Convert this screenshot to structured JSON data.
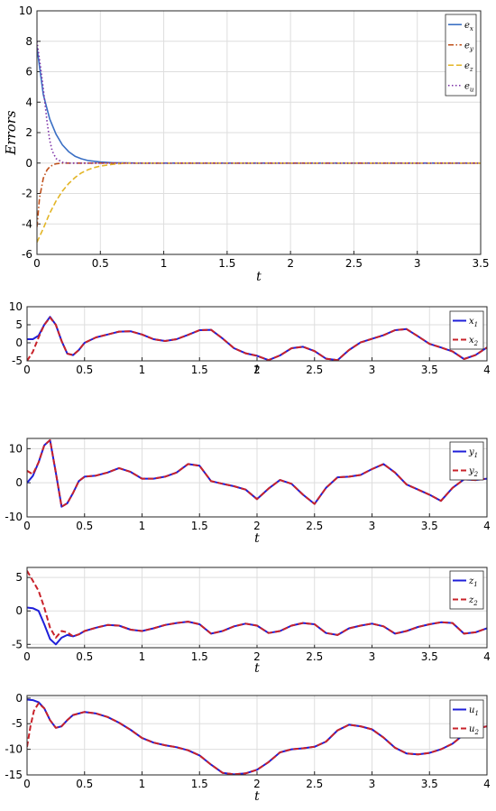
{
  "chart_data": [
    {
      "type": "line",
      "title": "",
      "xlabel": "t",
      "ylabel": "Errors",
      "xlim": [
        0,
        3.5
      ],
      "ylim": [
        -6,
        10
      ],
      "xticks": [
        "0",
        "0.5",
        "1",
        "1.5",
        "2",
        "2.5",
        "3",
        "3.5"
      ],
      "yticks": [
        "-6",
        "-4",
        "-2",
        "0",
        "2",
        "4",
        "6",
        "8",
        "10"
      ],
      "grid": true,
      "legend_position": "top-right",
      "series": [
        {
          "name": "e_x",
          "legend_base": "e",
          "legend_sub": "x",
          "color": "#3a6fc4",
          "dash": "solid",
          "x": [
            0,
            0.05,
            0.1,
            0.15,
            0.2,
            0.25,
            0.3,
            0.35,
            0.4,
            0.5,
            0.6,
            0.7,
            0.8,
            1,
            3.5
          ],
          "y": [
            7.6,
            4.5,
            2.9,
            1.9,
            1.2,
            0.75,
            0.45,
            0.28,
            0.17,
            0.07,
            0.02,
            0.01,
            0,
            0,
            0
          ]
        },
        {
          "name": "e_y",
          "legend_base": "e",
          "legend_sub": "y",
          "color": "#c0501a",
          "dash": "dashdot",
          "x": [
            0,
            0.02,
            0.05,
            0.08,
            0.1,
            0.13,
            0.15,
            0.2,
            0.25,
            0.3,
            0.4,
            3.5
          ],
          "y": [
            -4.2,
            -2.3,
            -1.0,
            -0.45,
            -0.25,
            -0.1,
            -0.05,
            0,
            0,
            0,
            0,
            0
          ]
        },
        {
          "name": "e_z",
          "legend_base": "e",
          "legend_sub": "z",
          "color": "#e3b526",
          "dash": "dashed",
          "x": [
            0,
            0.05,
            0.1,
            0.15,
            0.2,
            0.25,
            0.3,
            0.35,
            0.4,
            0.45,
            0.5,
            0.6,
            0.7,
            3.5
          ],
          "y": [
            -5.2,
            -4.3,
            -3.3,
            -2.5,
            -1.85,
            -1.35,
            -0.95,
            -0.65,
            -0.45,
            -0.3,
            -0.2,
            -0.08,
            0,
            0
          ]
        },
        {
          "name": "e_u",
          "legend_base": "e",
          "legend_sub": "u",
          "color": "#7b2fa6",
          "dash": "dotted",
          "x": [
            0,
            0.03,
            0.05,
            0.08,
            0.1,
            0.12,
            0.15,
            0.2,
            0.25,
            0.3,
            3.5
          ],
          "y": [
            8.0,
            6.2,
            4.9,
            2.7,
            1.5,
            0.8,
            0.3,
            0.05,
            0,
            0,
            0
          ]
        }
      ]
    },
    {
      "type": "line",
      "title": "",
      "xlabel": "t",
      "ylabel": "",
      "xlim": [
        0,
        4
      ],
      "ylim": [
        -5,
        10
      ],
      "xticks": [
        "0",
        "0.5",
        "1",
        "1.5",
        "2",
        "2.5",
        "3",
        "3.5",
        "4"
      ],
      "yticks": [
        "-5",
        "0",
        "5",
        "10"
      ],
      "grid": true,
      "legend_position": "top-right",
      "series": [
        {
          "name": "x_1",
          "legend_base": "x",
          "legend_sub": "1",
          "color": "#1f1fd9",
          "dash": "solid",
          "x": [
            0,
            0.05,
            0.1,
            0.15,
            0.2,
            0.25,
            0.3,
            0.35,
            0.4,
            0.45,
            0.5,
            0.6,
            0.7,
            0.8,
            0.9,
            1.0,
            1.1,
            1.2,
            1.3,
            1.4,
            1.5,
            1.6,
            1.7,
            1.8,
            1.9,
            2.0,
            2.1,
            2.2,
            2.3,
            2.4,
            2.5,
            2.6,
            2.7,
            2.8,
            2.9,
            3.0,
            3.1,
            3.2,
            3.3,
            3.4,
            3.5,
            3.6,
            3.7,
            3.8,
            3.9,
            4.0
          ],
          "y": [
            1,
            1,
            2,
            5,
            7.2,
            5,
            0.5,
            -3,
            -3.4,
            -2,
            0,
            1.5,
            2.3,
            3.1,
            3.2,
            2.3,
            1,
            0.5,
            1,
            2.2,
            3.5,
            3.6,
            1.2,
            -1.5,
            -2.9,
            -3.6,
            -4.8,
            -3.5,
            -1.5,
            -1.1,
            -2.3,
            -4.4,
            -4.8,
            -2,
            0.1,
            1.1,
            2.1,
            3.5,
            3.8,
            1.8,
            -0.3,
            -1.3,
            -2.4,
            -4.5,
            -3.4,
            -1.3
          ]
        },
        {
          "name": "x_2",
          "legend_base": "x",
          "legend_sub": "2",
          "color": "#c8222a",
          "dash": "dashed",
          "x": [
            0,
            0.05,
            0.1,
            0.15,
            0.2,
            0.25,
            0.3,
            0.35,
            0.4,
            0.45,
            0.5,
            0.6,
            0.7,
            0.8,
            0.9,
            1.0,
            1.1,
            1.2,
            1.3,
            1.4,
            1.5,
            1.6,
            1.7,
            1.8,
            1.9,
            2.0,
            2.1,
            2.2,
            2.3,
            2.4,
            2.5,
            2.6,
            2.7,
            2.8,
            2.9,
            3.0,
            3.1,
            3.2,
            3.3,
            3.4,
            3.5,
            3.6,
            3.7,
            3.8,
            3.9,
            4.0
          ],
          "y": [
            -5,
            -2.5,
            1.5,
            5,
            7,
            5,
            0.5,
            -3,
            -3.4,
            -2,
            0,
            1.5,
            2.3,
            3.1,
            3.2,
            2.3,
            1,
            0.5,
            1,
            2.2,
            3.5,
            3.6,
            1.2,
            -1.5,
            -2.9,
            -3.6,
            -4.8,
            -3.5,
            -1.5,
            -1.1,
            -2.3,
            -4.4,
            -4.8,
            -2,
            0.1,
            1.1,
            2.1,
            3.5,
            3.8,
            1.8,
            -0.3,
            -1.3,
            -2.4,
            -4.5,
            -3.4,
            -1.3
          ]
        }
      ]
    },
    {
      "type": "line",
      "title": "",
      "xlabel": "t",
      "ylabel": "",
      "xlim": [
        0,
        4
      ],
      "ylim": [
        -10,
        13
      ],
      "xticks": [
        "0",
        "0.5",
        "1",
        "1.5",
        "2",
        "2.5",
        "3",
        "3.5",
        "4"
      ],
      "yticks": [
        "-10",
        "0",
        "10"
      ],
      "grid": true,
      "legend_position": "top-right",
      "series": [
        {
          "name": "y_1",
          "legend_base": "y",
          "legend_sub": "1",
          "color": "#1f1fd9",
          "dash": "solid",
          "x": [
            0,
            0.05,
            0.1,
            0.15,
            0.2,
            0.25,
            0.3,
            0.35,
            0.4,
            0.45,
            0.5,
            0.6,
            0.7,
            0.8,
            0.9,
            1.0,
            1.1,
            1.2,
            1.3,
            1.4,
            1.5,
            1.6,
            1.7,
            1.8,
            1.9,
            2.0,
            2.1,
            2.2,
            2.3,
            2.4,
            2.5,
            2.6,
            2.7,
            2.8,
            2.9,
            3.0,
            3.1,
            3.2,
            3.3,
            3.4,
            3.5,
            3.6,
            3.7,
            3.8,
            3.9,
            4.0
          ],
          "y": [
            0,
            2,
            6,
            11,
            12.5,
            3,
            -7,
            -6,
            -3,
            0.5,
            1.8,
            2.1,
            3,
            4.3,
            3.2,
            1.2,
            1.2,
            1.8,
            3,
            5.5,
            5,
            0.5,
            -0.3,
            -1,
            -2,
            -4.8,
            -1.7,
            0.8,
            -0.3,
            -3.5,
            -6.2,
            -1.5,
            1.6,
            1.8,
            2.3,
            4,
            5.5,
            3,
            -0.5,
            -2,
            -3.5,
            -5.3,
            -1.5,
            1,
            0.8,
            1.2
          ]
        },
        {
          "name": "y_2",
          "legend_base": "y",
          "legend_sub": "2",
          "color": "#c8222a",
          "dash": "dashed",
          "x": [
            0,
            0.05,
            0.1,
            0.15,
            0.2,
            0.25,
            0.3,
            0.35,
            0.4,
            0.45,
            0.5,
            0.6,
            0.7,
            0.8,
            0.9,
            1.0,
            1.1,
            1.2,
            1.3,
            1.4,
            1.5,
            1.6,
            1.7,
            1.8,
            1.9,
            2.0,
            2.1,
            2.2,
            2.3,
            2.4,
            2.5,
            2.6,
            2.7,
            2.8,
            2.9,
            3.0,
            3.1,
            3.2,
            3.3,
            3.4,
            3.5,
            3.6,
            3.7,
            3.8,
            3.9,
            4.0
          ],
          "y": [
            3.5,
            2.5,
            6,
            11,
            12.5,
            3,
            -7,
            -6,
            -3,
            0.5,
            1.8,
            2.1,
            3,
            4.3,
            3.2,
            1.2,
            1.2,
            1.8,
            3,
            5.5,
            5,
            0.5,
            -0.3,
            -1,
            -2,
            -4.8,
            -1.7,
            0.8,
            -0.3,
            -3.5,
            -6.2,
            -1.5,
            1.6,
            1.8,
            2.3,
            4,
            5.5,
            3,
            -0.5,
            -2,
            -3.5,
            -5.3,
            -1.5,
            1,
            0.8,
            1.2
          ]
        }
      ]
    },
    {
      "type": "line",
      "title": "",
      "xlabel": "t",
      "ylabel": "",
      "xlim": [
        0,
        4
      ],
      "ylim": [
        -5.5,
        6.5
      ],
      "xticks": [
        "0",
        "0.5",
        "1",
        "1.5",
        "2",
        "2.5",
        "3",
        "3.5",
        "4"
      ],
      "yticks": [
        "-5",
        "0",
        "5"
      ],
      "grid": true,
      "legend_position": "top-right",
      "series": [
        {
          "name": "z_1",
          "legend_base": "z",
          "legend_sub": "1",
          "color": "#1f1fd9",
          "dash": "solid",
          "x": [
            0,
            0.05,
            0.1,
            0.15,
            0.2,
            0.25,
            0.3,
            0.35,
            0.4,
            0.45,
            0.5,
            0.6,
            0.7,
            0.8,
            0.9,
            1.0,
            1.1,
            1.2,
            1.3,
            1.4,
            1.5,
            1.6,
            1.7,
            1.8,
            1.9,
            2.0,
            2.1,
            2.2,
            2.3,
            2.4,
            2.5,
            2.6,
            2.7,
            2.8,
            2.9,
            3.0,
            3.1,
            3.2,
            3.3,
            3.4,
            3.5,
            3.6,
            3.7,
            3.8,
            3.9,
            4.0
          ],
          "y": [
            0.5,
            0.4,
            0,
            -2,
            -4.2,
            -5,
            -4,
            -3.6,
            -3.8,
            -3.5,
            -3,
            -2.5,
            -2.1,
            -2.2,
            -2.8,
            -3,
            -2.6,
            -2.1,
            -1.8,
            -1.6,
            -2,
            -3.4,
            -3,
            -2.3,
            -1.9,
            -2.2,
            -3.3,
            -3,
            -2.2,
            -1.8,
            -2,
            -3.3,
            -3.6,
            -2.6,
            -2.2,
            -1.9,
            -2.3,
            -3.4,
            -3,
            -2.4,
            -2,
            -1.7,
            -1.8,
            -3.4,
            -3.2,
            -2.6
          ]
        },
        {
          "name": "z_2",
          "legend_base": "z",
          "legend_sub": "2",
          "color": "#c8222a",
          "dash": "dashed",
          "x": [
            0,
            0.05,
            0.1,
            0.15,
            0.2,
            0.25,
            0.3,
            0.35,
            0.4,
            0.45,
            0.5,
            0.6,
            0.7,
            0.8,
            0.9,
            1.0,
            1.1,
            1.2,
            1.3,
            1.4,
            1.5,
            1.6,
            1.7,
            1.8,
            1.9,
            2.0,
            2.1,
            2.2,
            2.3,
            2.4,
            2.5,
            2.6,
            2.7,
            2.8,
            2.9,
            3.0,
            3.1,
            3.2,
            3.3,
            3.4,
            3.5,
            3.6,
            3.7,
            3.8,
            3.9,
            4.0
          ],
          "y": [
            6,
            4.5,
            3,
            0.5,
            -2.5,
            -4,
            -3,
            -3.2,
            -3.8,
            -3.5,
            -3,
            -2.5,
            -2.1,
            -2.2,
            -2.8,
            -3,
            -2.6,
            -2.1,
            -1.8,
            -1.6,
            -2,
            -3.4,
            -3,
            -2.3,
            -1.9,
            -2.2,
            -3.3,
            -3,
            -2.2,
            -1.8,
            -2,
            -3.3,
            -3.6,
            -2.6,
            -2.2,
            -1.9,
            -2.3,
            -3.4,
            -3,
            -2.4,
            -2,
            -1.7,
            -1.8,
            -3.4,
            -3.2,
            -2.6
          ]
        }
      ]
    },
    {
      "type": "line",
      "title": "",
      "xlabel": "t",
      "ylabel": "",
      "xlim": [
        0,
        4
      ],
      "ylim": [
        -15,
        0.5
      ],
      "xticks": [
        "0",
        "0.5",
        "1",
        "1.5",
        "2",
        "2.5",
        "3",
        "3.5",
        "4"
      ],
      "yticks": [
        "-15",
        "-10",
        "-5",
        "0"
      ],
      "grid": true,
      "legend_position": "top-right",
      "series": [
        {
          "name": "u_1",
          "legend_base": "u",
          "legend_sub": "1",
          "color": "#1f1fd9",
          "dash": "solid",
          "x": [
            0,
            0.05,
            0.1,
            0.15,
            0.2,
            0.25,
            0.3,
            0.35,
            0.4,
            0.5,
            0.6,
            0.7,
            0.8,
            0.9,
            1.0,
            1.1,
            1.2,
            1.3,
            1.4,
            1.5,
            1.6,
            1.7,
            1.8,
            1.9,
            2.0,
            2.1,
            2.2,
            2.3,
            2.4,
            2.5,
            2.6,
            2.7,
            2.8,
            2.9,
            3.0,
            3.1,
            3.2,
            3.3,
            3.4,
            3.5,
            3.6,
            3.7,
            3.8,
            3.9,
            4.0
          ],
          "y": [
            -0.3,
            -0.4,
            -0.8,
            -2,
            -4.3,
            -5.8,
            -5.5,
            -4.3,
            -3.3,
            -2.7,
            -3,
            -3.7,
            -4.8,
            -6.2,
            -7.8,
            -8.7,
            -9.2,
            -9.6,
            -10.2,
            -11.2,
            -13,
            -14.6,
            -14.9,
            -14.7,
            -14,
            -12.5,
            -10.6,
            -10,
            -9.8,
            -9.5,
            -8.5,
            -6.3,
            -5.2,
            -5.5,
            -6.1,
            -7.7,
            -9.7,
            -10.8,
            -11,
            -10.7,
            -10,
            -8.9,
            -7.1,
            -6,
            -5.5
          ]
        },
        {
          "name": "u_2",
          "legend_base": "u",
          "legend_sub": "2",
          "color": "#c8222a",
          "dash": "dashed",
          "x": [
            0,
            0.03,
            0.06,
            0.1,
            0.15,
            0.2,
            0.25,
            0.3,
            0.35,
            0.4,
            0.5,
            0.6,
            0.7,
            0.8,
            0.9,
            1.0,
            1.1,
            1.2,
            1.3,
            1.4,
            1.5,
            1.6,
            1.7,
            1.8,
            1.9,
            2.0,
            2.1,
            2.2,
            2.3,
            2.4,
            2.5,
            2.6,
            2.7,
            2.8,
            2.9,
            3.0,
            3.1,
            3.2,
            3.3,
            3.4,
            3.5,
            3.6,
            3.7,
            3.8,
            3.9,
            4.0
          ],
          "y": [
            -9.5,
            -5.5,
            -2.5,
            -1,
            -2,
            -4.3,
            -5.8,
            -5.5,
            -4.3,
            -3.3,
            -2.7,
            -3,
            -3.7,
            -4.8,
            -6.2,
            -7.8,
            -8.7,
            -9.2,
            -9.6,
            -10.2,
            -11.2,
            -13,
            -14.6,
            -14.9,
            -14.7,
            -14,
            -12.5,
            -10.6,
            -10,
            -9.8,
            -9.5,
            -8.5,
            -6.3,
            -5.2,
            -5.5,
            -6.1,
            -7.7,
            -9.7,
            -10.8,
            -11,
            -10.7,
            -10,
            -8.9,
            -7.1,
            -6,
            -5.5
          ]
        }
      ]
    }
  ]
}
